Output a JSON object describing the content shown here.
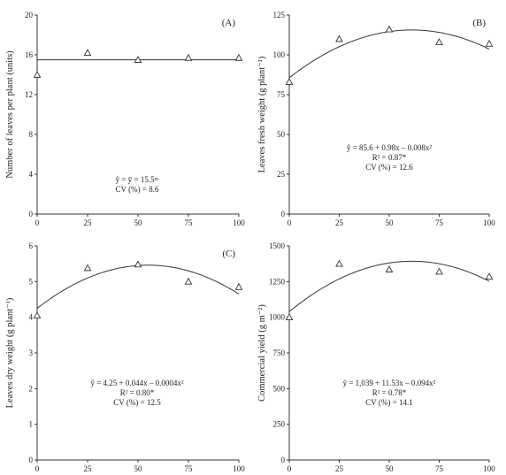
{
  "chart_data": [
    {
      "id": "A",
      "type": "scatter",
      "panel_label": "(A)",
      "ylabel": "Number of leaves per plant (units)",
      "xlabel": "",
      "x": [
        0,
        25,
        50,
        75,
        100
      ],
      "y": [
        14,
        16.2,
        15.5,
        15.7,
        15.7
      ],
      "xlim": [
        0,
        100
      ],
      "ylim": [
        0,
        20
      ],
      "xticks": [
        0,
        25,
        50,
        75,
        100
      ],
      "yticks": [
        0,
        4,
        8,
        12,
        16,
        20
      ],
      "fit": {
        "kind": "constant",
        "coef": [
          15.5
        ]
      },
      "annotations": [
        "ŷ = ȳ = 15.5ⁿˢ",
        "CV (%) = 8.6"
      ]
    },
    {
      "id": "B",
      "type": "scatter",
      "panel_label": "(B)",
      "ylabel": "Leaves fresh weight (g plant⁻¹)",
      "xlabel": "",
      "x": [
        0,
        25,
        50,
        75,
        100
      ],
      "y": [
        83,
        110,
        116,
        108,
        107
      ],
      "xlim": [
        0,
        100
      ],
      "ylim": [
        0,
        125
      ],
      "xticks": [
        0,
        25,
        50,
        75,
        100
      ],
      "yticks": [
        0,
        25,
        50,
        75,
        100,
        125
      ],
      "fit": {
        "kind": "quadratic",
        "coef": [
          85.6,
          0.98,
          -0.008
        ]
      },
      "annotations": [
        "ŷ = 85.6 + 0.98x – 0.008x²",
        "R² = 0.87*",
        "CV (%) = 12.6"
      ]
    },
    {
      "id": "C",
      "type": "scatter",
      "panel_label": "(C)",
      "ylabel": "Leaves dry weight (g plant⁻¹)",
      "xlabel": "Foliar Mo application (g ha⁻¹)",
      "x": [
        0,
        25,
        50,
        75,
        100
      ],
      "y": [
        4.05,
        5.38,
        5.48,
        5.0,
        4.85
      ],
      "xlim": [
        0,
        100
      ],
      "ylim": [
        0,
        6
      ],
      "xticks": [
        0,
        25,
        50,
        75,
        100
      ],
      "yticks": [
        0,
        1,
        2,
        3,
        4,
        5,
        6
      ],
      "fit": {
        "kind": "quadratic",
        "coef": [
          4.25,
          0.044,
          -0.0004
        ]
      },
      "annotations": [
        "ŷ = 4.25 + 0.044x – 0.0004x²",
        "R² = 0.80*",
        "CV (%) = 12.5"
      ]
    },
    {
      "id": "D",
      "type": "scatter",
      "panel_label": "",
      "ylabel": "Commercial yield (g m⁻²)",
      "xlabel": "Foliar Mo application (g ha⁻¹)",
      "x": [
        0,
        25,
        50,
        75,
        100
      ],
      "y": [
        1000,
        1375,
        1335,
        1320,
        1285
      ],
      "xlim": [
        0,
        100
      ],
      "ylim": [
        0,
        1500
      ],
      "xticks": [
        0,
        25,
        50,
        75,
        100
      ],
      "yticks": [
        0,
        250,
        500,
        750,
        1000,
        1250,
        1500
      ],
      "fit": {
        "kind": "quadratic",
        "coef": [
          1039,
          11.53,
          -0.094
        ]
      },
      "annotations": [
        "ŷ = 1,039 + 11.53x – 0.094x²",
        "R² = 0.78*",
        "CV (%) = 14.1"
      ]
    }
  ]
}
